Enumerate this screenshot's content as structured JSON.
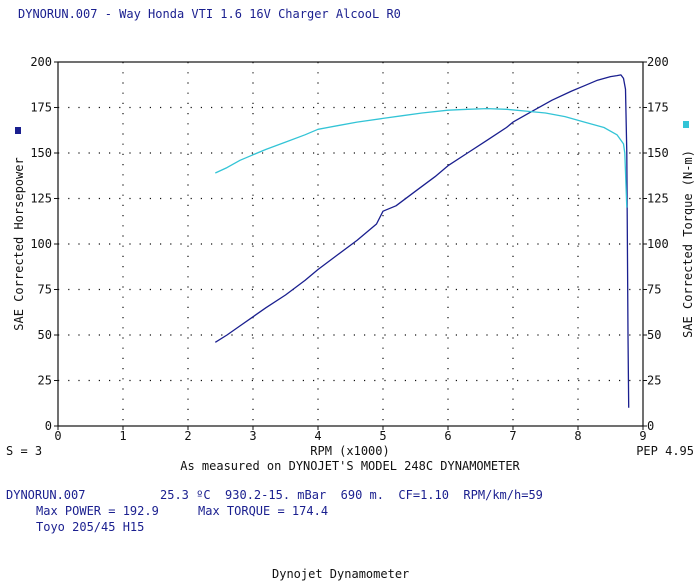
{
  "chart_data": {
    "type": "line",
    "title": "DYNORUN.007 - Way Honda VTI 1.6 16V Charger AlcooL  R0",
    "xlabel": "RPM (x1000)",
    "ylabel_left": "SAE Corrected Horsepower",
    "ylabel_right": "SAE Corrected Torque (N-m)",
    "xlim": [
      0,
      9
    ],
    "ylim": [
      0,
      200
    ],
    "x_ticks": [
      0,
      1,
      2,
      3,
      4,
      5,
      6,
      7,
      8,
      9
    ],
    "y_ticks": [
      0,
      25,
      50,
      75,
      100,
      125,
      150,
      175,
      200
    ],
    "grid": true,
    "subtitle": "As measured on DYNOJET'S MODEL 248C DYNAMOMETER",
    "smoothing": "S = 3",
    "pep": "PEP 4.95",
    "series": [
      {
        "name": "",
        "axis": "left",
        "color": "#1a1f8f",
        "points": [
          [
            2.42,
            46
          ],
          [
            2.6,
            50
          ],
          [
            2.8,
            55
          ],
          [
            3.0,
            60
          ],
          [
            3.2,
            65
          ],
          [
            3.5,
            72
          ],
          [
            3.8,
            80
          ],
          [
            4.0,
            86
          ],
          [
            4.3,
            94
          ],
          [
            4.6,
            102
          ],
          [
            4.9,
            111
          ],
          [
            5.0,
            118
          ],
          [
            5.2,
            121
          ],
          [
            5.5,
            129
          ],
          [
            5.8,
            137
          ],
          [
            6.0,
            143
          ],
          [
            6.3,
            150
          ],
          [
            6.6,
            157
          ],
          [
            6.9,
            164
          ],
          [
            7.0,
            167
          ],
          [
            7.3,
            173
          ],
          [
            7.6,
            179
          ],
          [
            7.9,
            184
          ],
          [
            8.1,
            187
          ],
          [
            8.3,
            190
          ],
          [
            8.5,
            192
          ],
          [
            8.6,
            192.5
          ],
          [
            8.66,
            192.9
          ],
          [
            8.7,
            191
          ],
          [
            8.73,
            185
          ],
          [
            8.75,
            150
          ],
          [
            8.76,
            100
          ],
          [
            8.77,
            50
          ],
          [
            8.78,
            10
          ]
        ]
      },
      {
        "name": "",
        "axis": "right",
        "color": "#33c4d6",
        "points": [
          [
            2.42,
            139
          ],
          [
            2.6,
            142
          ],
          [
            2.8,
            146
          ],
          [
            3.0,
            149
          ],
          [
            3.2,
            152
          ],
          [
            3.5,
            156
          ],
          [
            3.8,
            160
          ],
          [
            4.0,
            163
          ],
          [
            4.3,
            165
          ],
          [
            4.6,
            167
          ],
          [
            5.0,
            169
          ],
          [
            5.3,
            170.5
          ],
          [
            5.6,
            172
          ],
          [
            6.0,
            173.5
          ],
          [
            6.3,
            174
          ],
          [
            6.6,
            174.4
          ],
          [
            6.9,
            174
          ],
          [
            7.2,
            173
          ],
          [
            7.5,
            172
          ],
          [
            7.8,
            170
          ],
          [
            8.1,
            167
          ],
          [
            8.4,
            164
          ],
          [
            8.6,
            160
          ],
          [
            8.7,
            155
          ],
          [
            8.72,
            150
          ],
          [
            8.75,
            120
          ]
        ]
      }
    ]
  },
  "info": {
    "run": "DYNORUN.007",
    "conditions": "25.3 ºC  930.2-15. mBar  690 m.  CF=1.10  RPM/km/h=59",
    "max_power_label": "Max POWER = 192.9",
    "max_torque_label": "Max TORQUE = 174.4",
    "tire": "Toyo 205/45 H15",
    "footer": "Dynojet Dynamometer"
  },
  "colors": {
    "power": "#1a1f8f",
    "torque": "#33c4d6",
    "text": "#1a1f8f"
  }
}
